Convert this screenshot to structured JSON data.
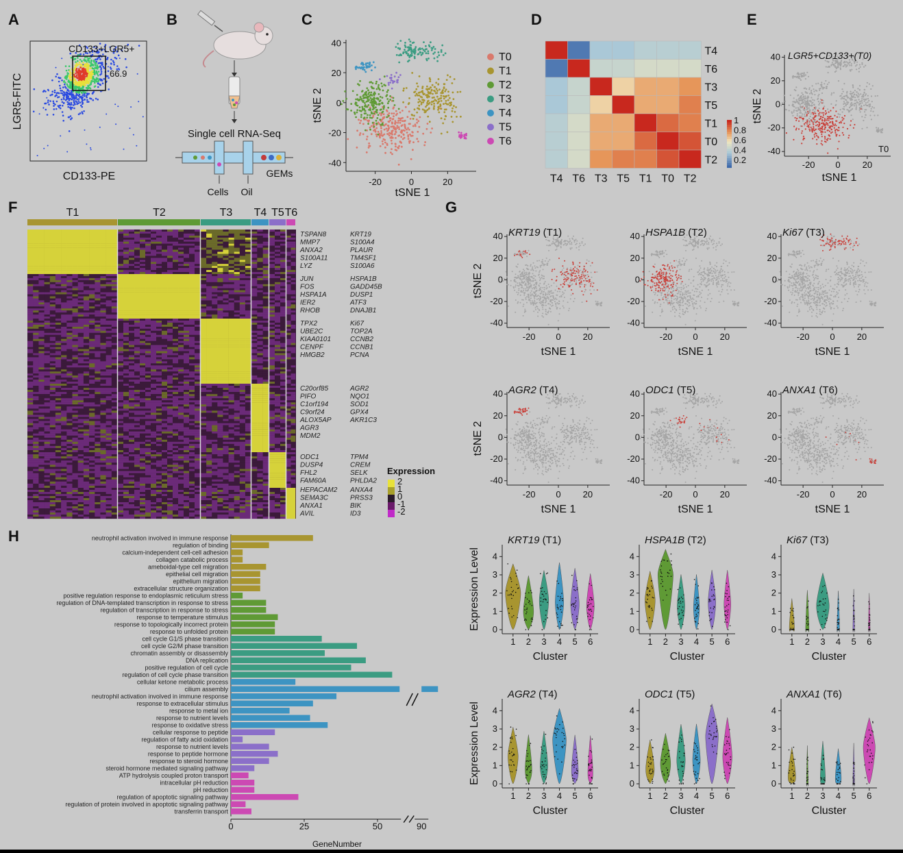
{
  "panels": {
    "A": {
      "letter": "A",
      "gate_label": "CD133+LGR5+",
      "gate_value": "66.9",
      "x_label": "CD133-PE",
      "y_label": "LGR5-FITC"
    },
    "B": {
      "letter": "B",
      "title": "Single cell RNA-Seq",
      "labels": [
        "Cells",
        "Oil",
        "GEMs"
      ]
    },
    "C": {
      "letter": "C",
      "x_label": "tSNE 1",
      "y_label": "tSNE 2",
      "x_ticks": [
        "-20",
        "0",
        "20"
      ],
      "y_ticks": [
        "40",
        "20",
        "0",
        "-20",
        "-40"
      ],
      "legend": [
        {
          "name": "T0",
          "color": "#d9796c"
        },
        {
          "name": "T1",
          "color": "#a89530"
        },
        {
          "name": "T2",
          "color": "#5f9a35"
        },
        {
          "name": "T3",
          "color": "#3b9c82"
        },
        {
          "name": "T4",
          "color": "#3d94c2"
        },
        {
          "name": "T5",
          "color": "#8b6fc9"
        },
        {
          "name": "T6",
          "color": "#cc49b3"
        }
      ]
    },
    "D": {
      "letter": "D",
      "order": [
        "T4",
        "T6",
        "T3",
        "T5",
        "T1",
        "T0",
        "T2"
      ],
      "colorbar_ticks": [
        "1",
        "0.8",
        "0.6",
        "0.4",
        "0.2"
      ],
      "matrix": [
        [
          1.0,
          0.05,
          0.3,
          0.3,
          0.35,
          0.35,
          0.35
        ],
        [
          0.05,
          1.0,
          0.4,
          0.4,
          0.45,
          0.45,
          0.45
        ],
        [
          0.3,
          0.4,
          1.0,
          0.6,
          0.7,
          0.7,
          0.75
        ],
        [
          0.3,
          0.4,
          0.6,
          1.0,
          0.7,
          0.7,
          0.8
        ],
        [
          0.35,
          0.45,
          0.7,
          0.7,
          1.0,
          0.85,
          0.8
        ],
        [
          0.35,
          0.45,
          0.7,
          0.7,
          0.85,
          1.0,
          0.9
        ],
        [
          0.35,
          0.45,
          0.75,
          0.8,
          0.8,
          0.9,
          1.0
        ]
      ]
    },
    "E": {
      "letter": "E",
      "title": "LGR5+CD133+(T0)",
      "tag": "T0",
      "x_label": "tSNE 1",
      "y_label": "tSNE 2",
      "x_ticks": [
        "-20",
        "0",
        "20"
      ],
      "y_ticks": [
        "40",
        "20",
        "0",
        "-20",
        "-40"
      ]
    },
    "F": {
      "letter": "F",
      "clusters": [
        {
          "name": "T1",
          "color": "#a89530"
        },
        {
          "name": "T2",
          "color": "#5f9a35"
        },
        {
          "name": "T3",
          "color": "#3b9c82"
        },
        {
          "name": "T4",
          "color": "#3d94c2"
        },
        {
          "name": "T5",
          "color": "#8b6fc9"
        },
        {
          "name": "T6",
          "color": "#cc49b3"
        }
      ],
      "gene_groups": [
        {
          "left": [
            "TSPAN8",
            "MMP7",
            "ANXA2",
            "S100A11",
            "LYZ"
          ],
          "right": [
            "KRT19",
            "S100A4",
            "PLAUR",
            "TM4SF1",
            "S100A6"
          ]
        },
        {
          "left": [
            "JUN",
            "FOS",
            "HSPA1A",
            "IER2",
            "RHOB"
          ],
          "right": [
            "HSPA1B",
            "GADD45B",
            "DUSP1",
            "ATF3",
            "DNAJB1"
          ]
        },
        {
          "left": [
            "TPX2",
            "UBE2C",
            "KIAA0101",
            "CENPF",
            "HMGB2"
          ],
          "right": [
            "Ki67",
            "TOP2A",
            "CCNB2",
            "CCNB1",
            "PCNA"
          ]
        },
        {
          "left": [
            "C20orf85",
            "PIFO",
            "C1orf194",
            "C9orf24",
            "ALOX5AP",
            "AGR3",
            "MDM2"
          ],
          "right": [
            "AGR2",
            "NQO1",
            "SOD1",
            "GPX4",
            "AKR1C3"
          ]
        },
        {
          "left": [
            "ODC1",
            "DUSP4",
            "FHL2",
            "FAM60A"
          ],
          "right": [
            "TPM4",
            "CREM",
            "SELK",
            "PHLDA2"
          ]
        },
        {
          "left": [
            "HEPACAM2",
            "SEMA3C",
            "ANXA1",
            "AVIL"
          ],
          "right": [
            "ANXA4",
            "PRSS3",
            "BIK",
            "ID3"
          ]
        }
      ],
      "legend_title": "Expression",
      "legend_ticks": [
        "2",
        "1",
        "0",
        "-1",
        "-2"
      ]
    },
    "G": {
      "letter": "G",
      "x_label": "tSNE 1",
      "y_label": "tSNE 2",
      "x_ticks": [
        "-20",
        "0",
        "20"
      ],
      "y_ticks": [
        "40",
        "20",
        "0",
        "-20",
        "-40"
      ],
      "tsne": [
        {
          "gene": "KRT19",
          "suffix": " (T1)"
        },
        {
          "gene": "HSPA1B",
          "suffix": " (T2)"
        },
        {
          "gene": "Ki67",
          "suffix": " (T3)"
        },
        {
          "gene": "AGR2",
          "suffix": " (T4)"
        },
        {
          "gene": "ODC1",
          "suffix": " (T5)"
        },
        {
          "gene": "ANXA1",
          "suffix": " (T6)"
        }
      ],
      "violin_y_label": "Expression Level",
      "violin_x_label": "Cluster",
      "violin_x_ticks": [
        "1",
        "2",
        "3",
        "4",
        "5",
        "6"
      ],
      "violin_y_ticks": [
        "0",
        "1",
        "2",
        "3",
        "4"
      ],
      "violins": [
        {
          "gene": "KRT19",
          "suffix": " (T1)",
          "levels": [
            2.0,
            1.0,
            1.6,
            1.5,
            1.4,
            1.3
          ],
          "widths": [
            0.9,
            0.6,
            0.55,
            0.5,
            0.5,
            0.45
          ]
        },
        {
          "gene": "HSPA1B",
          "suffix": " (T2)",
          "levels": [
            1.6,
            3.0,
            1.3,
            1.2,
            1.5,
            1.4
          ],
          "widths": [
            0.6,
            0.9,
            0.45,
            0.35,
            0.45,
            0.4
          ]
        },
        {
          "gene": "Ki67",
          "suffix": " (T3)",
          "levels": [
            0.1,
            0.05,
            1.3,
            0.05,
            0.05,
            0.05
          ],
          "widths": [
            0.3,
            0.2,
            0.75,
            0.15,
            0.1,
            0.1
          ]
        },
        {
          "gene": "AGR2",
          "suffix": " (T4)",
          "levels": [
            1.5,
            0.8,
            1.0,
            2.4,
            0.7,
            0.6
          ],
          "widths": [
            0.6,
            0.4,
            0.45,
            0.8,
            0.4,
            0.3
          ]
        },
        {
          "gene": "ODC1",
          "suffix": " (T5)",
          "levels": [
            0.8,
            1.1,
            1.3,
            1.3,
            2.6,
            1.5
          ],
          "widths": [
            0.5,
            0.6,
            0.5,
            0.45,
            0.75,
            0.55
          ]
        },
        {
          "gene": "ANXA1",
          "suffix": " (T6)",
          "levels": [
            0.4,
            0.05,
            0.3,
            0.3,
            0.05,
            2.0
          ],
          "widths": [
            0.45,
            0.1,
            0.3,
            0.35,
            0.1,
            0.7
          ]
        }
      ]
    },
    "H": {
      "letter": "H",
      "x_label": "GeneNumber",
      "x_ticks": [
        "0",
        "25",
        "50",
        "90"
      ]
    }
  },
  "chart_data": [
    {
      "type": "heatmap",
      "categories": [
        "T4",
        "T6",
        "T3",
        "T5",
        "T1",
        "T0",
        "T2"
      ],
      "values": [
        [
          1.0,
          0.05,
          0.3,
          0.3,
          0.35,
          0.35,
          0.35
        ],
        [
          0.05,
          1.0,
          0.4,
          0.4,
          0.45,
          0.45,
          0.45
        ],
        [
          0.3,
          0.4,
          1.0,
          0.6,
          0.7,
          0.7,
          0.75
        ],
        [
          0.3,
          0.4,
          0.6,
          1.0,
          0.7,
          0.7,
          0.8
        ],
        [
          0.35,
          0.45,
          0.7,
          0.7,
          1.0,
          0.85,
          0.8
        ],
        [
          0.35,
          0.45,
          0.7,
          0.7,
          0.85,
          1.0,
          0.9
        ],
        [
          0.35,
          0.45,
          0.75,
          0.8,
          0.8,
          0.9,
          1.0
        ]
      ],
      "colorbar": [
        0.2,
        1
      ]
    },
    {
      "type": "bar",
      "orientation": "horizontal",
      "xlabel": "GeneNumber",
      "xlim": [
        0,
        90
      ],
      "axis_break": [
        58,
        88
      ],
      "categories": [
        "neutrophil activation involved in immune response",
        "regulation of binding",
        "calcium-independent cell-cell adhesion",
        "collagen catabolic process",
        "ameboidal-type cell migration",
        "epithelial cell migration",
        "epithelium migration",
        "extracellular structure organization",
        "positive regulation response to endoplasmic reticulum stress",
        "regulation of DNA-templated transcription in response to stress",
        "regulation of transcription in response to stress",
        "response to temperature stimulus",
        "response to topologically incorrect protein",
        "response to unfolded protein",
        "cell cycle G1/S phase transition",
        "cell cycle G2/M phase transition",
        "chromatin assembly or disassembly",
        "DNA replication",
        "positive regulation of cell cycle",
        "regulation of cell cycle phase transition",
        "cellular ketone metabolic process",
        "cilium assembly",
        "neutrophil activation involved in immune response",
        "response to extracellular stimulus",
        "response to metal ion",
        "response to nutrient levels",
        "response to oxidative stress",
        "cellular response to peptide",
        "regulation of fatty acid oxidation",
        "response to nutrient levels",
        "response to peptide hormone",
        "response to steroid hormone",
        "steroid hormone mediated signaling pathway",
        "ATP hydrolysis coupled proton transport",
        "intracellular pH reduction",
        "pH reduction",
        "regulation of apoptotic signaling pathway",
        "regulation of protein involved in apoptotic signaling pathway",
        "transferrin transport"
      ],
      "values": [
        28,
        13,
        4,
        4,
        12,
        10,
        10,
        10,
        4,
        12,
        12,
        16,
        15,
        15,
        31,
        43,
        32,
        46,
        41,
        55,
        22,
        91,
        36,
        28,
        20,
        27,
        33,
        15,
        4,
        13,
        16,
        13,
        8,
        6,
        8,
        8,
        23,
        5,
        7
      ],
      "group_colors": [
        "#a89530",
        "#a89530",
        "#a89530",
        "#a89530",
        "#a89530",
        "#a89530",
        "#a89530",
        "#a89530",
        "#5f9a35",
        "#5f9a35",
        "#5f9a35",
        "#5f9a35",
        "#5f9a35",
        "#5f9a35",
        "#3b9c82",
        "#3b9c82",
        "#3b9c82",
        "#3b9c82",
        "#3b9c82",
        "#3b9c82",
        "#3d94c2",
        "#3d94c2",
        "#3d94c2",
        "#3d94c2",
        "#3d94c2",
        "#3d94c2",
        "#3d94c2",
        "#8b6fc9",
        "#8b6fc9",
        "#8b6fc9",
        "#8b6fc9",
        "#8b6fc9",
        "#8b6fc9",
        "#cc49b3",
        "#cc49b3",
        "#cc49b3",
        "#cc49b3",
        "#cc49b3",
        "#cc49b3"
      ]
    }
  ]
}
